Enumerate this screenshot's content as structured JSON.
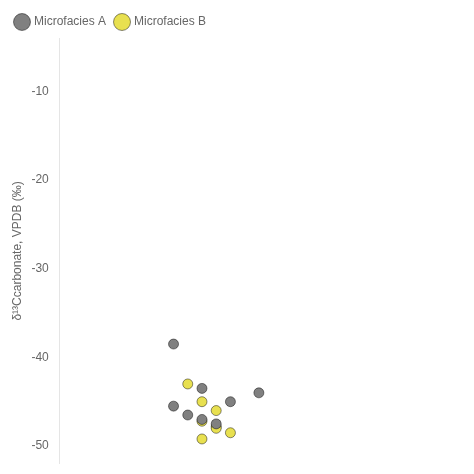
{
  "chart_data": {
    "type": "scatter",
    "y_label": "δ¹³Ccarbonate, VPDB (‰)",
    "series": [
      {
        "name": "Microfacies A",
        "color": "#808080",
        "marker": "circle",
        "x": [
          3.2,
          3.3,
          3.2,
          3.25,
          3.3,
          3.35,
          3.4,
          3.5
        ],
        "values": [
          -38.5,
          -43.5,
          -45.5,
          -46.5,
          -47.0,
          -47.5,
          -45.0,
          -44.0
        ]
      },
      {
        "name": "Microfacies B",
        "color": "#e8e050",
        "marker": "circle",
        "x": [
          3.25,
          3.3,
          3.35,
          3.3,
          3.35,
          3.4,
          3.35,
          3.3
        ],
        "values": [
          -43.0,
          -45.0,
          -46.0,
          -47.2,
          -47.8,
          -48.5,
          -48.0,
          -49.2
        ]
      }
    ],
    "xlim": [
      2.8,
      4.2
    ],
    "ylim": [
      -52,
      -4
    ],
    "yticks": [
      -10,
      -20,
      -30,
      -40,
      -50
    ],
    "grid": false,
    "legend": "upper left",
    "tick_labels": "y"
  }
}
